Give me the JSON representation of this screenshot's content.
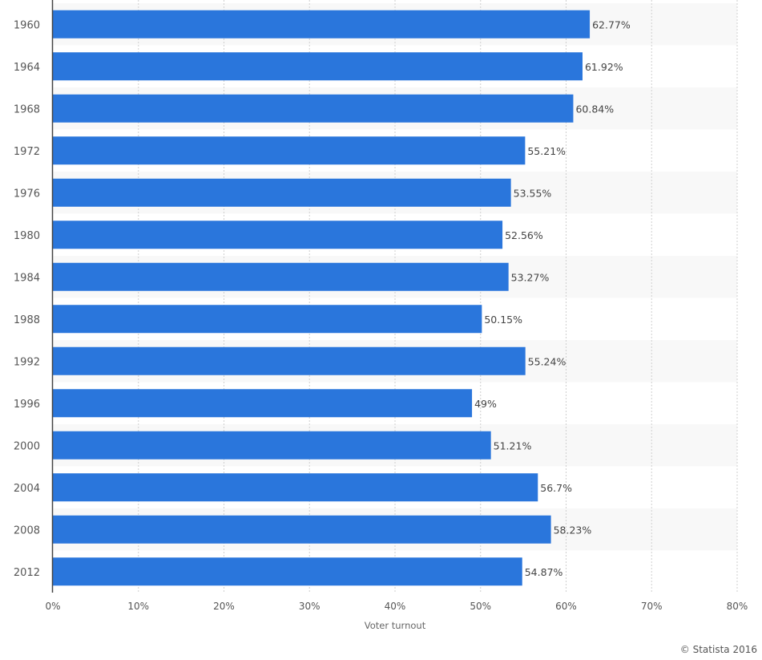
{
  "chart_data": {
    "type": "bar",
    "orientation": "horizontal",
    "categories": [
      "1960",
      "1964",
      "1968",
      "1972",
      "1976",
      "1980",
      "1984",
      "1988",
      "1992",
      "1996",
      "2000",
      "2004",
      "2008",
      "2012"
    ],
    "values": [
      62.77,
      61.92,
      60.84,
      55.21,
      53.55,
      52.56,
      53.27,
      50.15,
      55.24,
      49,
      51.21,
      56.7,
      58.23,
      54.87
    ],
    "data_labels": [
      "62.77%",
      "61.92%",
      "60.84%",
      "55.21%",
      "53.55%",
      "52.56%",
      "53.27%",
      "50.15%",
      "55.24%",
      "49%",
      "51.21%",
      "56.7%",
      "58.23%",
      "54.87%"
    ],
    "xlabel": "Voter turnout",
    "ylabel": "",
    "xlim": [
      0,
      80
    ],
    "xticks": [
      "0%",
      "10%",
      "20%",
      "30%",
      "40%",
      "50%",
      "60%",
      "70%",
      "80%"
    ],
    "grid": true,
    "bar_color": "#2a76dc",
    "band_color": "#f8f8f8"
  },
  "credit": "© Statista 2016"
}
